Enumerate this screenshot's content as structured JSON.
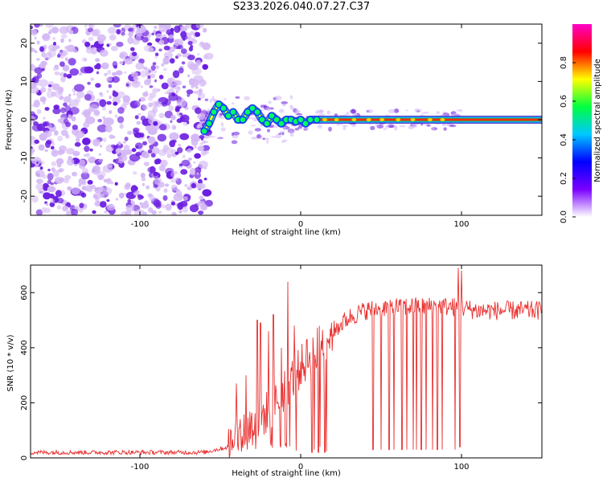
{
  "title": "S233.2026.040.07.27.C37",
  "colors": {
    "series_line": "#e8302f",
    "track": "#ff2a10",
    "halo": "#1a8a55",
    "scatter_deep": "#6a1ce0",
    "scatter_light": "#d4b8f5"
  },
  "chart_data": [
    {
      "type": "heatmap",
      "title": "S233.2026.040.07.27.C37",
      "xlabel": "Height of straight line (km)",
      "ylabel": "Frequency (Hz)",
      "xlim": [
        -168,
        150
      ],
      "ylim": [
        -25,
        25
      ],
      "xticks": [
        -100,
        0,
        100
      ],
      "yticks": [
        -20,
        -10,
        0,
        10,
        20
      ],
      "noise_region_x": [
        -168,
        -57
      ],
      "track_points": {
        "x": [
          -60,
          -57,
          -54,
          -51,
          -48,
          -45,
          -42,
          -39,
          -36,
          -33,
          -30,
          -27,
          -24,
          -21,
          -18,
          -15,
          -12,
          -9,
          -6,
          -3,
          0,
          3,
          6,
          10,
          150
        ],
        "y": [
          -3,
          -1,
          2,
          4,
          3,
          1,
          2,
          0,
          0,
          2,
          3,
          2,
          0,
          -1,
          1,
          0,
          -1,
          0,
          0,
          -0.5,
          0,
          -1,
          0,
          0,
          0
        ]
      },
      "colorbar": {
        "label": "Normalized spectral amplitude",
        "range": [
          0,
          1
        ],
        "ticks": [
          "0.0",
          "0.2",
          "0.4",
          "0.6",
          "0.8"
        ],
        "stops": [
          "#ffffff",
          "#7a00ff",
          "#0000ff",
          "#00c8ff",
          "#00ff40",
          "#ffff00",
          "#ff0000",
          "#ff00c8"
        ]
      }
    },
    {
      "type": "line",
      "xlabel": "Height of straight line (km)",
      "ylabel": "SNR (10 * v/v)",
      "xlim": [
        -168,
        150
      ],
      "ylim": [
        0,
        700
      ],
      "xticks": [
        -100,
        0,
        100
      ],
      "yticks": [
        0,
        200,
        400,
        600
      ],
      "envelope_x": [
        -168,
        -60,
        -45,
        -40,
        -35,
        -30,
        -20,
        -10,
        0,
        10,
        20,
        30,
        40,
        50,
        60,
        70,
        80,
        90,
        100,
        110,
        120,
        130,
        150
      ],
      "envelope_y": [
        20,
        20,
        40,
        80,
        100,
        120,
        170,
        250,
        330,
        400,
        460,
        510,
        535,
        545,
        548,
        550,
        550,
        550,
        545,
        535,
        535,
        535,
        535
      ],
      "spikes": [
        {
          "x": -40,
          "y": 270
        },
        {
          "x": -34,
          "y": 300
        },
        {
          "x": -27,
          "y": 500
        },
        {
          "x": -25,
          "y": 490
        },
        {
          "x": -20,
          "y": 460
        },
        {
          "x": -17,
          "y": 520
        },
        {
          "x": -12,
          "y": 400
        },
        {
          "x": -8,
          "y": 640
        },
        {
          "x": -4,
          "y": 480
        },
        {
          "x": 4,
          "y": 430
        },
        {
          "x": 98,
          "y": 690
        },
        {
          "x": 100,
          "y": 680
        }
      ],
      "dropouts": [
        {
          "x": 7,
          "y": 20
        },
        {
          "x": 11,
          "y": 20
        },
        {
          "x": 15,
          "y": 20
        },
        {
          "x": 45,
          "y": 30
        },
        {
          "x": 50,
          "y": 30
        },
        {
          "x": 55,
          "y": 30
        },
        {
          "x": 58,
          "y": 30
        },
        {
          "x": 63,
          "y": 30
        },
        {
          "x": 66,
          "y": 30
        },
        {
          "x": 70,
          "y": 30
        },
        {
          "x": 72,
          "y": 30
        },
        {
          "x": 75,
          "y": 30
        },
        {
          "x": 78,
          "y": 30
        },
        {
          "x": 82,
          "y": 30
        },
        {
          "x": 85,
          "y": 30
        },
        {
          "x": 88,
          "y": 30
        },
        {
          "x": 96,
          "y": 30
        },
        {
          "x": 99,
          "y": 40
        }
      ]
    }
  ]
}
